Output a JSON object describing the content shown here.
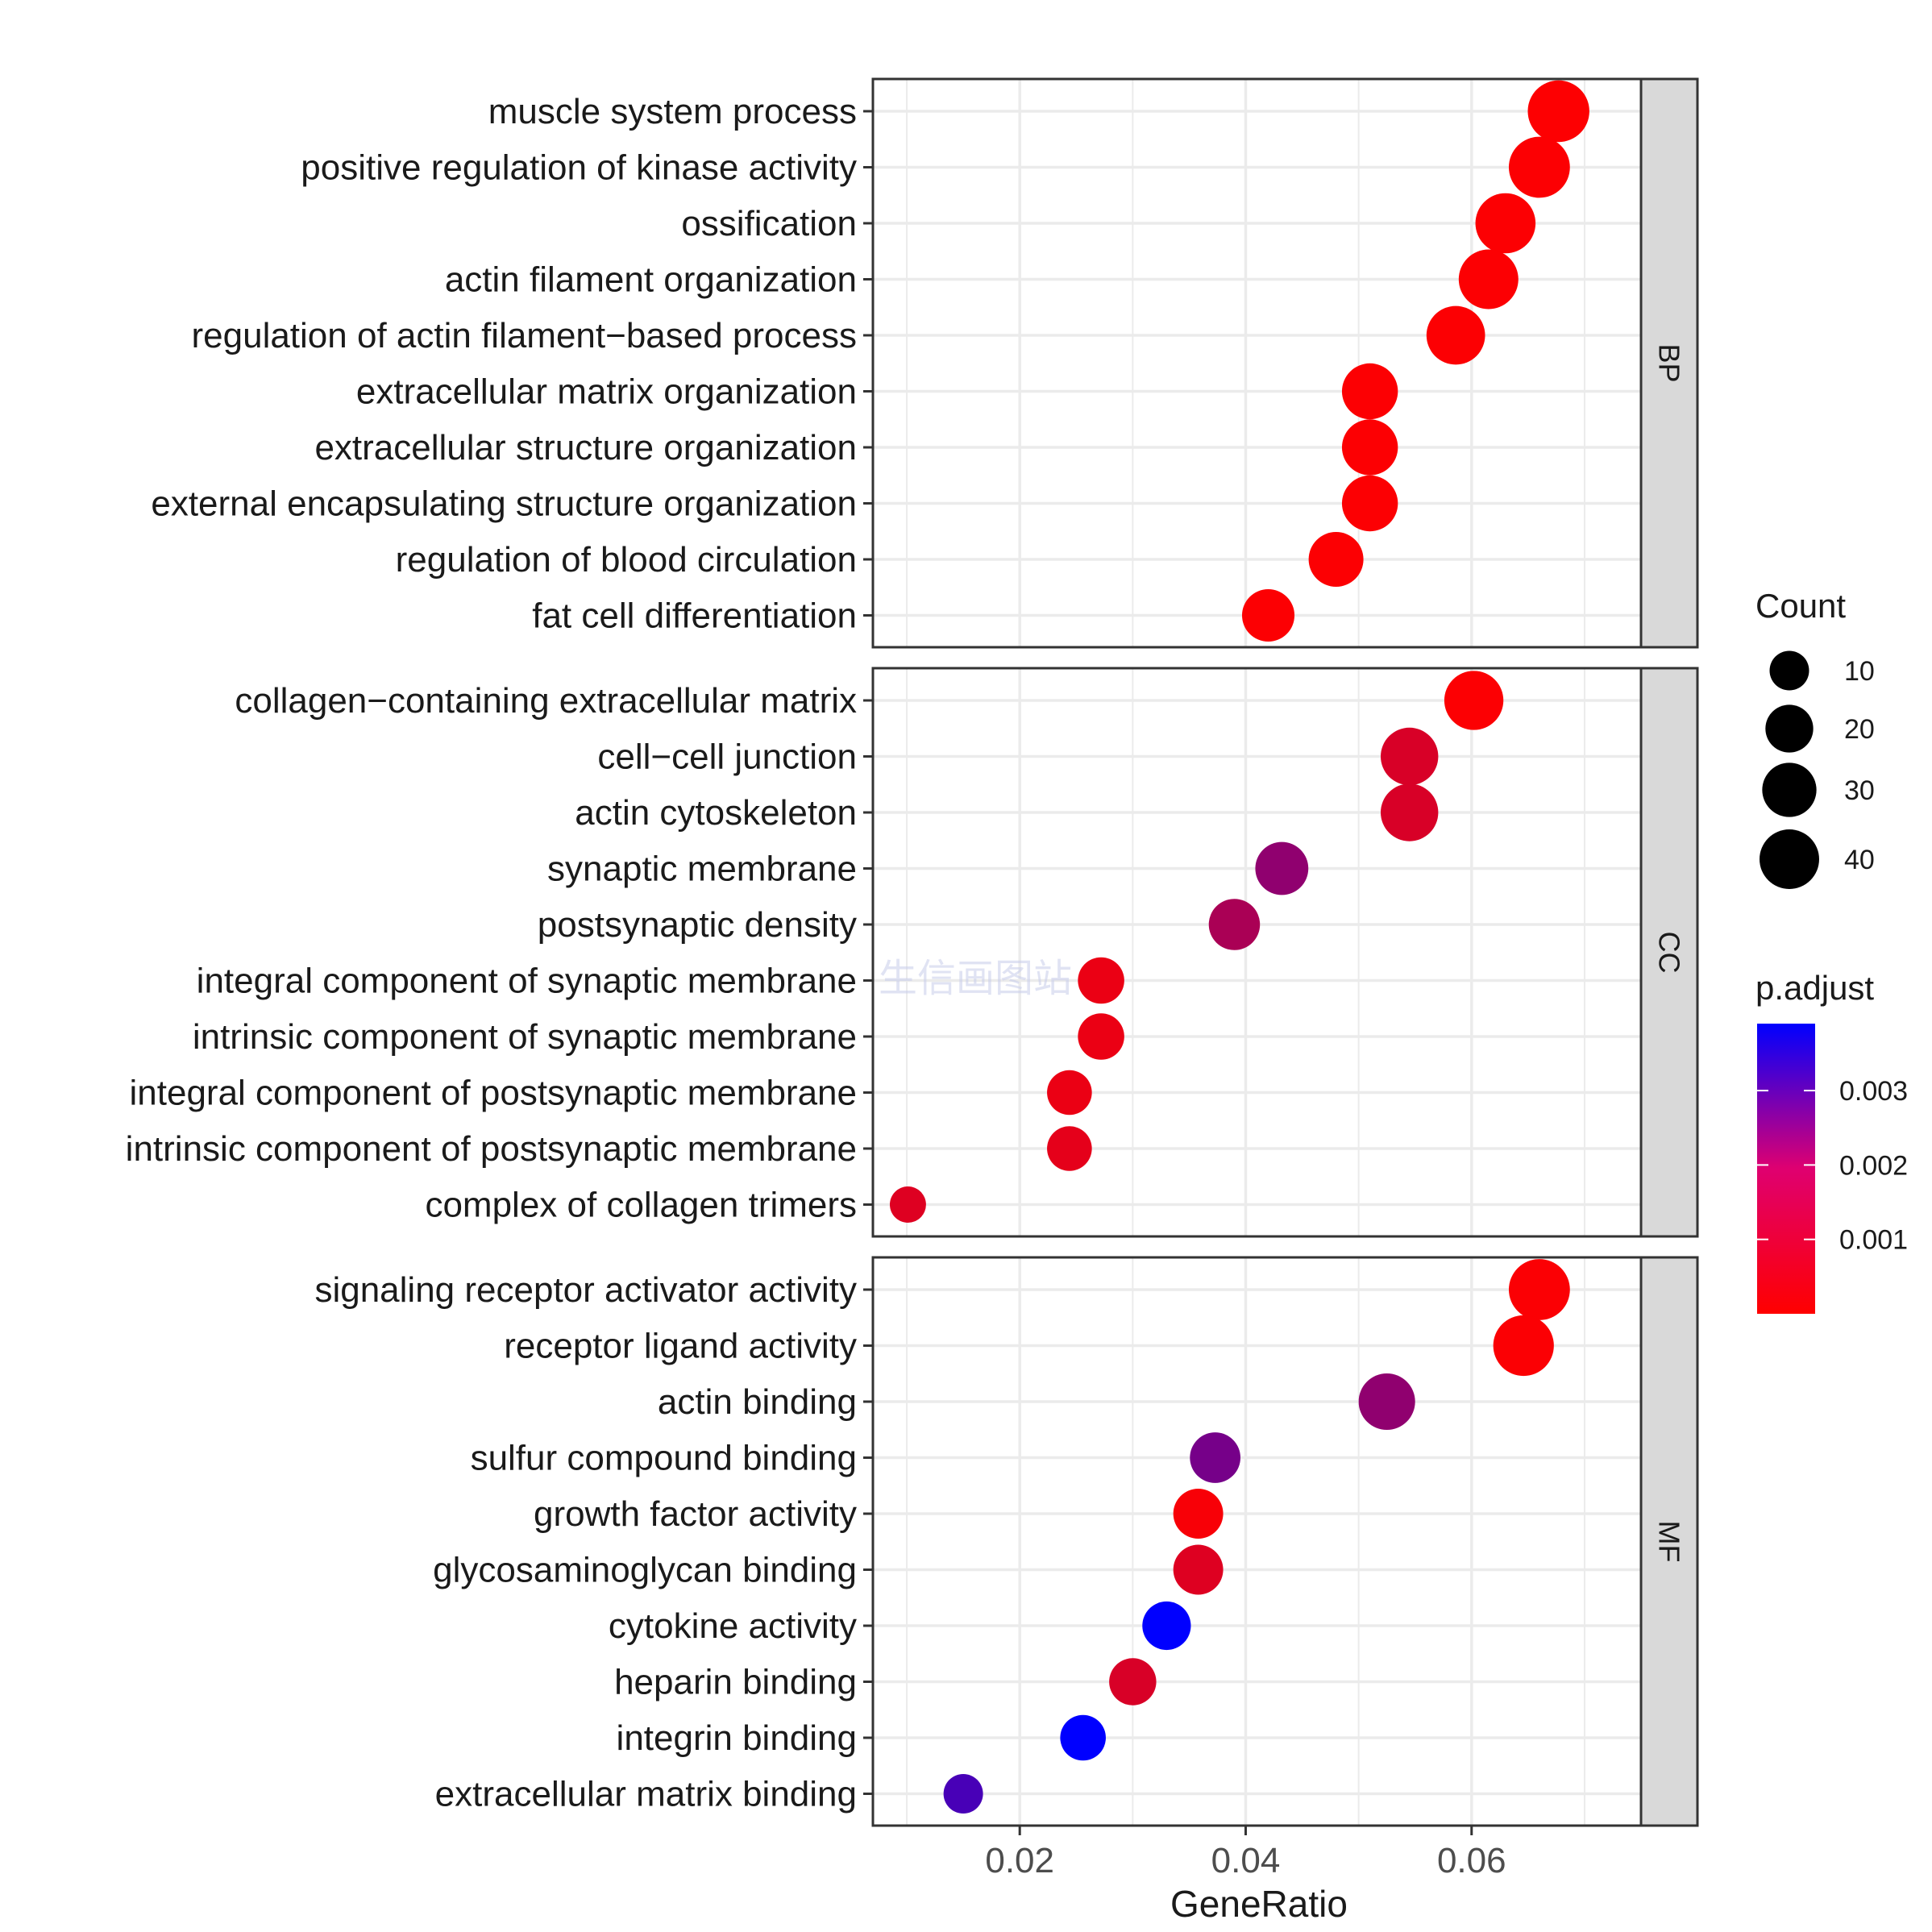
{
  "chart_data": {
    "type": "scatter",
    "subtype": "dot-plot",
    "xlabel": "GeneRatio",
    "xlim": [
      0.007,
      0.075
    ],
    "xticks": [
      0.02,
      0.04,
      0.06
    ],
    "xtick_labels": [
      "0.02",
      "0.04",
      "0.06"
    ],
    "x_minor_gridlines": [
      0.01,
      0.03,
      0.05,
      0.07
    ],
    "panels": [
      {
        "strip_label": "BP",
        "terms": [
          {
            "label": "muscle system process",
            "gene_ratio": 0.0677,
            "count": 44,
            "p_adjust": 3e-05
          },
          {
            "label": "positive regulation of kinase activity",
            "gene_ratio": 0.066,
            "count": 43,
            "p_adjust": 4e-05
          },
          {
            "label": "ossification",
            "gene_ratio": 0.063,
            "count": 41,
            "p_adjust": 4e-05
          },
          {
            "label": "actin filament organization",
            "gene_ratio": 0.0615,
            "count": 40,
            "p_adjust": 5e-05
          },
          {
            "label": "regulation of actin filament−based process",
            "gene_ratio": 0.0586,
            "count": 38,
            "p_adjust": 4e-05
          },
          {
            "label": "extracellular matrix organization",
            "gene_ratio": 0.051,
            "count": 33,
            "p_adjust": 4e-05
          },
          {
            "label": "extracellular structure organization",
            "gene_ratio": 0.051,
            "count": 33,
            "p_adjust": 4e-05
          },
          {
            "label": "external encapsulating structure organization",
            "gene_ratio": 0.051,
            "count": 33,
            "p_adjust": 4e-05
          },
          {
            "label": "regulation of blood circulation",
            "gene_ratio": 0.048,
            "count": 31,
            "p_adjust": 5e-05
          },
          {
            "label": "fat cell differentiation",
            "gene_ratio": 0.042,
            "count": 27,
            "p_adjust": 4e-05
          }
        ]
      },
      {
        "strip_label": "CC",
        "terms": [
          {
            "label": "collagen−containing extracellular matrix",
            "gene_ratio": 0.0602,
            "count": 39,
            "p_adjust": 5e-05
          },
          {
            "label": "cell−cell junction",
            "gene_ratio": 0.0545,
            "count": 36,
            "p_adjust": 0.0006
          },
          {
            "label": "actin cytoskeleton",
            "gene_ratio": 0.0545,
            "count": 36,
            "p_adjust": 0.0006
          },
          {
            "label": "synaptic membrane",
            "gene_ratio": 0.0432,
            "count": 28,
            "p_adjust": 0.0017
          },
          {
            "label": "postsynaptic density",
            "gene_ratio": 0.039,
            "count": 25,
            "p_adjust": 0.0013
          },
          {
            "label": "integral component of synaptic membrane",
            "gene_ratio": 0.0272,
            "count": 18,
            "p_adjust": 0.0003
          },
          {
            "label": "intrinsic component of synaptic membrane",
            "gene_ratio": 0.0272,
            "count": 18,
            "p_adjust": 0.0003
          },
          {
            "label": "integral component of postsynaptic membrane",
            "gene_ratio": 0.0244,
            "count": 16,
            "p_adjust": 0.0003
          },
          {
            "label": "intrinsic component of postsynaptic membrane",
            "gene_ratio": 0.0244,
            "count": 16,
            "p_adjust": 0.0004
          },
          {
            "label": "complex of collagen trimers",
            "gene_ratio": 0.0101,
            "count": 7,
            "p_adjust": 0.0005
          }
        ]
      },
      {
        "strip_label": "MF",
        "terms": [
          {
            "label": "signaling receptor activator activity",
            "gene_ratio": 0.066,
            "count": 43,
            "p_adjust": 6e-05
          },
          {
            "label": "receptor ligand activity",
            "gene_ratio": 0.0646,
            "count": 42,
            "p_adjust": 6e-05
          },
          {
            "label": "actin binding",
            "gene_ratio": 0.0525,
            "count": 34,
            "p_adjust": 0.0017
          },
          {
            "label": "sulfur compound binding",
            "gene_ratio": 0.0373,
            "count": 24,
            "p_adjust": 0.0021
          },
          {
            "label": "growth factor activity",
            "gene_ratio": 0.0358,
            "count": 23,
            "p_adjust": 0.0001
          },
          {
            "label": "glycosaminoglycan binding",
            "gene_ratio": 0.0358,
            "count": 23,
            "p_adjust": 0.0005
          },
          {
            "label": "cytokine activity",
            "gene_ratio": 0.033,
            "count": 21,
            "p_adjust": 0.0039
          },
          {
            "label": "heparin binding",
            "gene_ratio": 0.03,
            "count": 19,
            "p_adjust": 0.0006
          },
          {
            "label": "integrin binding",
            "gene_ratio": 0.0256,
            "count": 17,
            "p_adjust": 0.0039
          },
          {
            "label": "extracellular matrix binding",
            "gene_ratio": 0.015,
            "count": 10,
            "p_adjust": 0.0028
          }
        ]
      }
    ],
    "legend_size": {
      "title": "Count",
      "values": [
        10,
        20,
        30,
        40
      ],
      "labels": [
        "10",
        "20",
        "30",
        "40"
      ]
    },
    "legend_color": {
      "title": "p.adjust",
      "min": 0.0,
      "max": 0.0039,
      "low_color": "#FF0000",
      "high_color": "#0000FF",
      "breaks": [
        0.003,
        0.002,
        0.001
      ],
      "break_labels": [
        "0.003",
        "0.002",
        "0.001"
      ]
    },
    "watermark": "生信画图站"
  },
  "colors": {
    "panel_border": "#333333",
    "strip_fill": "#D9D9D9",
    "grid": "#EBEBEB",
    "text": "#1A1A1A"
  }
}
